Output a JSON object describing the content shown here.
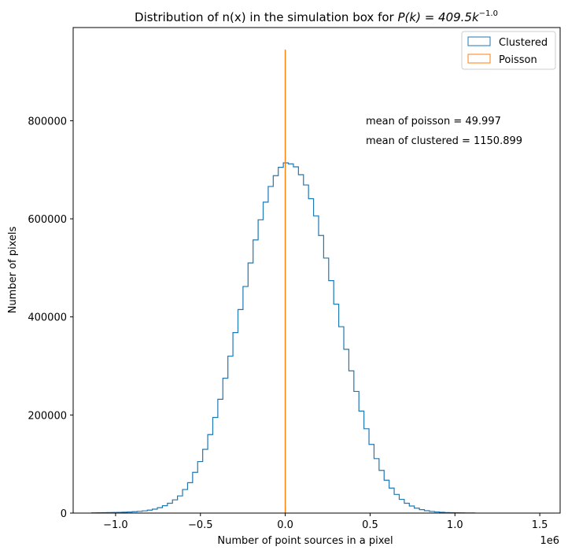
{
  "chart_data": {
    "type": "histogram",
    "title_prefix": "Distribution of n(x) in the simulation box for ",
    "title_math": "P(k) = 409.5k",
    "title_exp": "−1.0",
    "xlabel": "Number of point sources in a pixel",
    "ylabel": "Number of pixels",
    "x_offset_label": "1e6",
    "xlim": [
      -1.25,
      1.62
    ],
    "ylim": [
      0,
      990000
    ],
    "x_ticks": [
      -1.0,
      -0.5,
      0.0,
      0.5,
      1.0,
      1.5
    ],
    "x_tick_labels": [
      "−1.0",
      "−0.5",
      "0.0",
      "0.5",
      "1.0",
      "1.5"
    ],
    "y_ticks": [
      0,
      200000,
      400000,
      600000,
      800000
    ],
    "y_tick_labels": [
      "0",
      "200000",
      "400000",
      "600000",
      "800000"
    ],
    "legend": {
      "position": "top-right",
      "entries": [
        {
          "label": "Clustered",
          "color": "#1f77b4"
        },
        {
          "label": "Poisson",
          "color": "#ff7f0e"
        }
      ]
    },
    "annotations": [
      "mean of poisson = 49.997",
      "mean of clustered = 1150.899"
    ],
    "series": [
      {
        "name": "Clustered",
        "color": "#1f77b4",
        "style": "step",
        "bin_edges_start": -1.14,
        "bin_width": 0.0297,
        "counts": [
          500,
          700,
          800,
          1000,
          1200,
          1500,
          1800,
          2200,
          2800,
          3500,
          4500,
          6000,
          8000,
          11000,
          15000,
          20000,
          27000,
          35000,
          48000,
          62000,
          83000,
          105000,
          130000,
          160000,
          195000,
          232000,
          275000,
          320000,
          368000,
          415000,
          462000,
          510000,
          557000,
          598000,
          634000,
          666000,
          688000,
          705000,
          714000,
          712000,
          706000,
          690000,
          669000,
          641000,
          606000,
          566000,
          520000,
          474000,
          426000,
          380000,
          334000,
          290000,
          248000,
          208000,
          172000,
          140000,
          111000,
          87000,
          67000,
          51000,
          38000,
          28000,
          20000,
          14500,
          10000,
          7000,
          4800,
          3300,
          2300,
          1600,
          1100,
          800,
          600,
          400,
          300,
          200
        ]
      },
      {
        "name": "Poisson",
        "color": "#ff7f0e",
        "style": "step",
        "x": 5e-05,
        "peak": 945000
      }
    ]
  }
}
